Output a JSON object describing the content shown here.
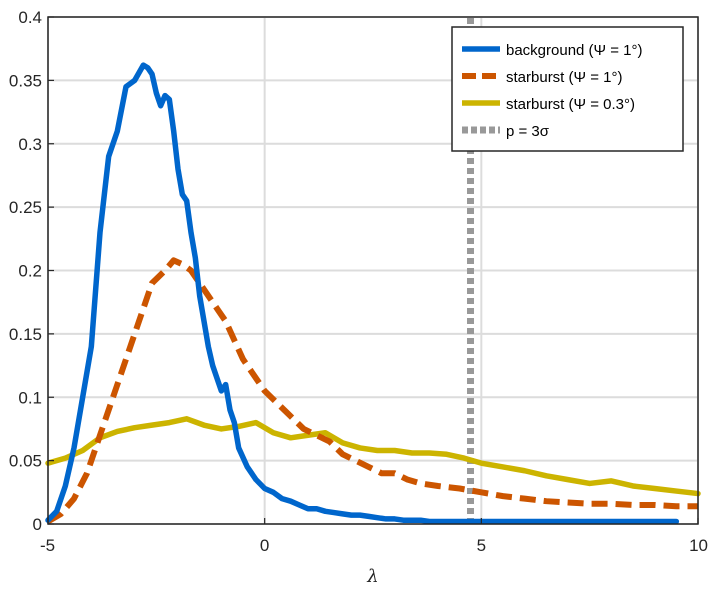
{
  "chart_data": {
    "type": "line",
    "title": "",
    "xlabel": "λ",
    "ylabel": "",
    "xlim": [
      -5,
      10
    ],
    "ylim": [
      0,
      0.4
    ],
    "xticks": [
      "-5",
      "0",
      "5",
      "10"
    ],
    "yticks": [
      "0",
      "0.05",
      "0.1",
      "0.15",
      "0.2",
      "0.25",
      "0.3",
      "0.35",
      "0.4"
    ],
    "grid": true,
    "legend_position": "top-right",
    "series": [
      {
        "name": "background (Ψ = 1°)",
        "color": "#0066cc",
        "style": "solid",
        "x": [
          -5,
          -4.8,
          -4.6,
          -4.4,
          -4.2,
          -4.0,
          -3.8,
          -3.6,
          -3.4,
          -3.2,
          -3.0,
          -2.8,
          -2.7,
          -2.6,
          -2.5,
          -2.4,
          -2.3,
          -2.2,
          -2.1,
          -2.0,
          -1.9,
          -1.8,
          -1.7,
          -1.6,
          -1.5,
          -1.4,
          -1.3,
          -1.2,
          -1.1,
          -1.0,
          -0.9,
          -0.8,
          -0.7,
          -0.6,
          -0.4,
          -0.2,
          0.0,
          0.2,
          0.4,
          0.6,
          0.8,
          1.0,
          1.2,
          1.4,
          1.6,
          1.8,
          2.0,
          2.2,
          2.4,
          2.6,
          2.8,
          3.0,
          3.2,
          3.4,
          3.6,
          3.8,
          4.0,
          4.2,
          4.4,
          4.6,
          4.8,
          5.0,
          5.5,
          6.0,
          6.5,
          7.0,
          7.5,
          8.0,
          8.5,
          9.0,
          9.5
        ],
        "y": [
          0.003,
          0.01,
          0.03,
          0.06,
          0.1,
          0.14,
          0.23,
          0.29,
          0.31,
          0.345,
          0.35,
          0.362,
          0.36,
          0.355,
          0.34,
          0.33,
          0.338,
          0.335,
          0.31,
          0.28,
          0.26,
          0.255,
          0.23,
          0.21,
          0.18,
          0.16,
          0.14,
          0.125,
          0.115,
          0.105,
          0.11,
          0.09,
          0.08,
          0.06,
          0.045,
          0.035,
          0.028,
          0.025,
          0.02,
          0.018,
          0.015,
          0.012,
          0.012,
          0.01,
          0.009,
          0.008,
          0.007,
          0.007,
          0.006,
          0.005,
          0.004,
          0.004,
          0.003,
          0.003,
          0.003,
          0.002,
          0.002,
          0.002,
          0.002,
          0.002,
          0.002,
          0.002,
          0.002,
          0.002,
          0.002,
          0.002,
          0.002,
          0.002,
          0.002,
          0.002,
          0.002
        ]
      },
      {
        "name": "starburst (Ψ = 1°)",
        "color": "#cc5500",
        "style": "dashed",
        "x": [
          -5,
          -4.7,
          -4.4,
          -4.1,
          -3.8,
          -3.5,
          -3.2,
          -2.9,
          -2.6,
          -2.3,
          -2.1,
          -1.9,
          -1.7,
          -1.5,
          -1.3,
          -1.1,
          -0.9,
          -0.7,
          -0.5,
          -0.3,
          0.0,
          0.3,
          0.6,
          0.9,
          1.2,
          1.5,
          1.8,
          2.1,
          2.4,
          2.7,
          3.0,
          3.3,
          3.6,
          4.0,
          4.5,
          5.0,
          5.5,
          6.0,
          6.5,
          7.0,
          7.5,
          8.0,
          8.5,
          9.0,
          9.5,
          10.0
        ],
        "y": [
          0.002,
          0.008,
          0.02,
          0.04,
          0.07,
          0.1,
          0.13,
          0.16,
          0.19,
          0.2,
          0.208,
          0.205,
          0.2,
          0.19,
          0.18,
          0.17,
          0.16,
          0.145,
          0.13,
          0.12,
          0.105,
          0.095,
          0.085,
          0.075,
          0.07,
          0.065,
          0.055,
          0.05,
          0.045,
          0.04,
          0.04,
          0.035,
          0.032,
          0.03,
          0.028,
          0.025,
          0.022,
          0.02,
          0.018,
          0.017,
          0.016,
          0.016,
          0.015,
          0.015,
          0.014,
          0.014
        ]
      },
      {
        "name": "starburst (Ψ = 0.3°)",
        "color": "#ccb400",
        "style": "solid",
        "x": [
          -5,
          -4.6,
          -4.2,
          -3.8,
          -3.4,
          -3.0,
          -2.6,
          -2.2,
          -1.8,
          -1.4,
          -1.0,
          -0.6,
          -0.2,
          0.2,
          0.6,
          1.0,
          1.4,
          1.8,
          2.2,
          2.6,
          3.0,
          3.4,
          3.8,
          4.2,
          4.6,
          5.0,
          5.5,
          6.0,
          6.5,
          7.0,
          7.5,
          8.0,
          8.5,
          9.0,
          9.5,
          10.0
        ],
        "y": [
          0.048,
          0.052,
          0.058,
          0.068,
          0.073,
          0.076,
          0.078,
          0.08,
          0.083,
          0.078,
          0.075,
          0.077,
          0.08,
          0.072,
          0.068,
          0.07,
          0.072,
          0.064,
          0.06,
          0.058,
          0.058,
          0.056,
          0.056,
          0.055,
          0.052,
          0.048,
          0.045,
          0.042,
          0.038,
          0.035,
          0.032,
          0.034,
          0.03,
          0.028,
          0.026,
          0.024
        ]
      },
      {
        "name": "p = 3σ",
        "color": "#999999",
        "style": "dotted",
        "x": [
          4.75,
          4.75
        ],
        "y": [
          0,
          0.4
        ]
      }
    ]
  }
}
